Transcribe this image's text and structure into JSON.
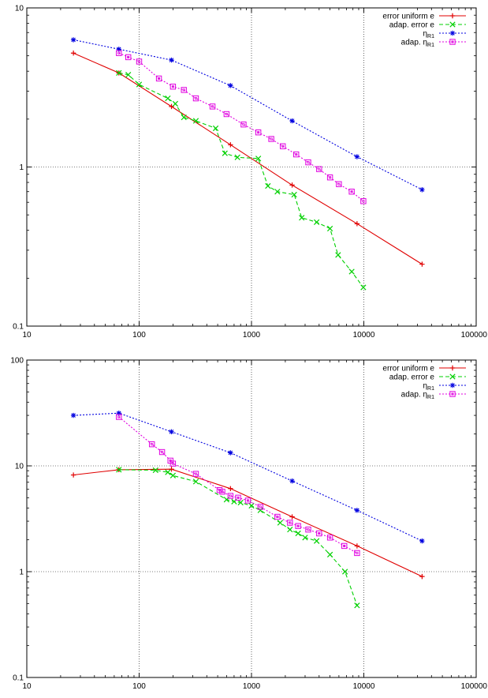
{
  "chart_data": [
    {
      "type": "line",
      "title": "",
      "xlabel": "",
      "ylabel": "",
      "x_scale": "log",
      "y_scale": "log",
      "xlim": [
        10,
        100000
      ],
      "ylim": [
        0.1,
        10
      ],
      "x_ticks": [
        "10",
        "100",
        "1000",
        "10000",
        "100000"
      ],
      "y_ticks": [
        "0.1",
        "1",
        "10"
      ],
      "grid": "dotted lines at major decades",
      "legend_position": "top-right",
      "series": [
        {
          "name": "error uniform e",
          "label_main": "error uniform e",
          "label_sub": "",
          "color": "#e00000",
          "dash": "solid",
          "marker": "plus",
          "x": [
            26,
            66,
            194,
            650,
            2300,
            8700,
            33000
          ],
          "y": [
            5.2,
            3.9,
            2.4,
            1.38,
            0.77,
            0.44,
            0.245
          ]
        },
        {
          "name": "adap. error e",
          "label_main": "adap. error e",
          "label_sub": "",
          "color": "#00d000",
          "dash": "dashed",
          "marker": "cross",
          "x": [
            66,
            80,
            100,
            180,
            210,
            250,
            320,
            480,
            580,
            750,
            1150,
            1400,
            1700,
            2400,
            2800,
            3800,
            5000,
            5900,
            7800,
            9900
          ],
          "y": [
            3.9,
            3.8,
            3.3,
            2.7,
            2.5,
            2.05,
            1.95,
            1.75,
            1.22,
            1.15,
            1.13,
            0.76,
            0.7,
            0.67,
            0.48,
            0.45,
            0.41,
            0.28,
            0.22,
            0.175
          ]
        },
        {
          "name": "η_R1",
          "label_main": "η",
          "label_sub": "R1",
          "color": "#0000e0",
          "dash": "dotted",
          "marker": "star",
          "x": [
            26,
            66,
            194,
            650,
            2300,
            8700,
            33000
          ],
          "y": [
            6.3,
            5.5,
            4.7,
            3.25,
            1.95,
            1.16,
            0.72
          ]
        },
        {
          "name": "adap. η_R1",
          "label_main": "adap. η",
          "label_sub": "R1",
          "color": "#e000e0",
          "dash": "dotted",
          "marker": "square",
          "x": [
            66,
            80,
            100,
            150,
            200,
            250,
            320,
            450,
            600,
            850,
            1150,
            1500,
            1900,
            2500,
            3200,
            4000,
            5000,
            6000,
            7800,
            9900
          ],
          "y": [
            5.2,
            4.9,
            4.6,
            3.6,
            3.2,
            3.05,
            2.7,
            2.4,
            2.15,
            1.85,
            1.65,
            1.5,
            1.35,
            1.2,
            1.07,
            0.97,
            0.86,
            0.78,
            0.7,
            0.61
          ]
        }
      ]
    },
    {
      "type": "line",
      "title": "",
      "xlabel": "",
      "ylabel": "",
      "x_scale": "log",
      "y_scale": "log",
      "xlim": [
        10,
        100000
      ],
      "ylim": [
        0.1,
        100
      ],
      "x_ticks": [
        "10",
        "100",
        "1000",
        "10000",
        "100000"
      ],
      "y_ticks": [
        "0.1",
        "1",
        "10",
        "100"
      ],
      "grid": "dotted lines at major decades",
      "legend_position": "top-right",
      "series": [
        {
          "name": "error uniform e",
          "label_main": "error uniform e",
          "label_sub": "",
          "color": "#e00000",
          "dash": "solid",
          "marker": "plus",
          "x": [
            26,
            66,
            194,
            650,
            2300,
            8700,
            33000
          ],
          "y": [
            8.2,
            9.2,
            9.3,
            6.1,
            3.3,
            1.75,
            0.9
          ]
        },
        {
          "name": "adap. error e",
          "label_main": "adap. error e",
          "label_sub": "",
          "color": "#00d000",
          "dash": "dashed",
          "marker": "cross",
          "x": [
            66,
            140,
            180,
            200,
            320,
            600,
            700,
            800,
            1000,
            1200,
            1800,
            2200,
            2600,
            3000,
            3800,
            5000,
            6800,
            8700
          ],
          "y": [
            9.2,
            9.1,
            8.7,
            8.1,
            7.1,
            4.8,
            4.6,
            4.5,
            4.2,
            3.8,
            2.9,
            2.5,
            2.3,
            2.1,
            1.95,
            1.45,
            1.0,
            0.48
          ]
        },
        {
          "name": "η_R1",
          "label_main": "η",
          "label_sub": "R1",
          "color": "#0000e0",
          "dash": "dotted",
          "marker": "star",
          "x": [
            26,
            66,
            194,
            650,
            2300,
            8700,
            33000
          ],
          "y": [
            30,
            31.5,
            21,
            13.3,
            7.2,
            3.8,
            1.95
          ]
        },
        {
          "name": "adap. η_R1",
          "label_main": "adap. η",
          "label_sub": "R1",
          "color": "#e000e0",
          "dash": "dotted",
          "marker": "square",
          "x": [
            66,
            130,
            160,
            190,
            200,
            320,
            520,
            550,
            650,
            760,
            930,
            1200,
            1700,
            2200,
            2600,
            3200,
            4000,
            5000,
            6700,
            8700
          ],
          "y": [
            29,
            16,
            13.5,
            11.2,
            10.5,
            8.4,
            5.9,
            5.7,
            5.2,
            5.0,
            4.7,
            4.1,
            3.3,
            2.9,
            2.7,
            2.5,
            2.3,
            2.1,
            1.75,
            1.5
          ]
        }
      ]
    }
  ]
}
